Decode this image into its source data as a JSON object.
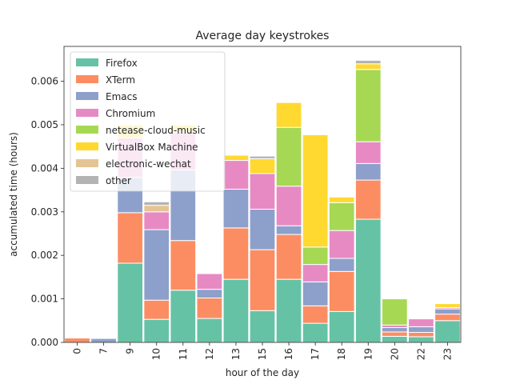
{
  "chart_data": {
    "type": "bar",
    "stacked": true,
    "title": "Average day keystrokes",
    "xlabel": "hour of the day",
    "ylabel": "accumulated time (hours)",
    "ylim": [
      0,
      0.0068
    ],
    "yticks": [
      "0.000",
      "0.001",
      "0.002",
      "0.003",
      "0.004",
      "0.005",
      "0.006"
    ],
    "ytick_values": [
      0,
      0.001,
      0.002,
      0.003,
      0.004,
      0.005,
      0.006
    ],
    "grid": false,
    "legend_position": "top-left",
    "categories": [
      "0",
      "7",
      "9",
      "10",
      "11",
      "12",
      "13",
      "15",
      "16",
      "17",
      "18",
      "19",
      "20",
      "22",
      "23"
    ],
    "series": [
      {
        "name": "Firefox",
        "color": "#66c2a5",
        "values": [
          0,
          0,
          0.00182,
          0.00053,
          0.0012,
          0.00055,
          0.00145,
          0.00073,
          0.00145,
          0.00044,
          0.00071,
          0.00283,
          0.00014,
          0.00013,
          0.0005
        ]
      },
      {
        "name": "XTerm",
        "color": "#fc8d62",
        "values": [
          0.0001,
          0,
          0.00116,
          0.00044,
          0.00114,
          0.00047,
          0.00118,
          0.0014,
          0.00103,
          0.0004,
          0.00092,
          0.0009,
          0.0001,
          0.0001,
          0.00015
        ]
      },
      {
        "name": "Emacs",
        "color": "#8da0cb",
        "values": [
          0,
          9e-05,
          0.00081,
          0.00162,
          0.00162,
          0.0002,
          0.00089,
          0.00093,
          0.0002,
          0.00055,
          0.0003,
          0.00038,
          0.0001,
          0.00013,
          0.00012
        ]
      },
      {
        "name": "Chromium",
        "color": "#e78ac3",
        "values": [
          0,
          0,
          0.00091,
          0.00041,
          0.00087,
          0.00036,
          0.00066,
          0.00082,
          0.00091,
          0.0004,
          0.00064,
          0.0005,
          6e-05,
          0.00018,
          3e-05
        ]
      },
      {
        "name": "netease-cloud-music",
        "color": "#a6d854",
        "values": [
          0,
          0,
          0,
          0,
          0,
          0,
          0,
          0,
          0.00135,
          0.0004,
          0.00064,
          0.00166,
          0.0006,
          0,
          0
        ]
      },
      {
        "name": "VirtualBox Machine",
        "color": "#ffd92f",
        "values": [
          0,
          0,
          0.0003,
          0,
          0.00017,
          0,
          0.00012,
          0.00034,
          0.00057,
          0.00258,
          0.00013,
          0.00013,
          0,
          0,
          9e-05
        ]
      },
      {
        "name": "electronic-wechat",
        "color": "#e5c494",
        "values": [
          0,
          0,
          0,
          0.00015,
          0,
          0,
          0,
          0,
          0,
          0,
          0,
          0,
          0,
          0,
          0
        ]
      },
      {
        "name": "other",
        "color": "#b3b3b3",
        "values": [
          0,
          0,
          0,
          8e-05,
          0,
          0,
          0,
          6e-05,
          0,
          0,
          0,
          8e-05,
          0,
          0,
          0
        ]
      }
    ]
  }
}
